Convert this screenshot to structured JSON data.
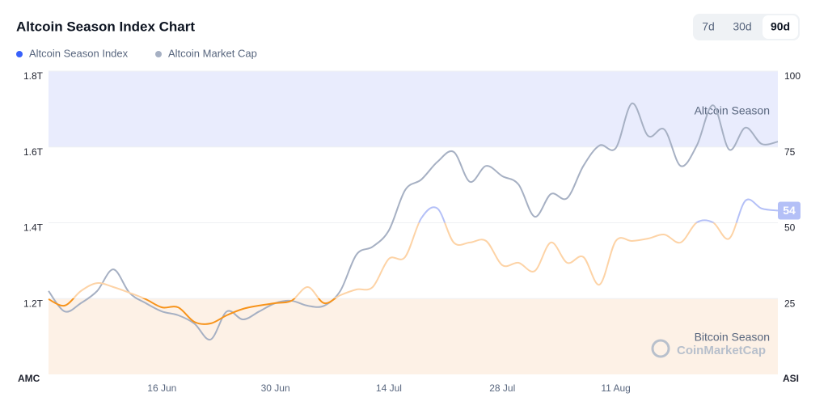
{
  "header": {
    "title": "Altcoin Season Index Chart",
    "ranges": [
      "7d",
      "30d",
      "90d"
    ],
    "active_range": 2
  },
  "chart_data": {
    "type": "line",
    "categories": [
      null,
      null,
      null,
      null,
      null,
      null,
      null,
      "16 Jun",
      null,
      null,
      null,
      null,
      null,
      null,
      "30 Jun",
      null,
      null,
      null,
      null,
      null,
      null,
      "14 Jul",
      null,
      null,
      null,
      null,
      null,
      null,
      "28 Jul",
      null,
      null,
      null,
      null,
      null,
      null,
      "11 Aug",
      null,
      null,
      null,
      null,
      null,
      null,
      null,
      null,
      null,
      null
    ],
    "series": [
      {
        "name": "Altcoin Season Index",
        "color": "#3861fb",
        "axis": "y2",
        "line_colors": [
          "#f7931a",
          "#fdd3a6",
          "#b4c0f7"
        ],
        "line_color_stops": [
          25,
          50
        ],
        "values": [
          24.8,
          22.7,
          27.5,
          30.1,
          28.8,
          26.9,
          24.8,
          22.1,
          22.1,
          17.3,
          16.8,
          19.5,
          21.6,
          22.7,
          23.5,
          24.3,
          28.8,
          23.5,
          26.1,
          28.0,
          28.8,
          38.1,
          38.7,
          51.5,
          54.7,
          43.5,
          43.5,
          44.0,
          36.0,
          36.8,
          34.1,
          43.5,
          36.8,
          38.7,
          29.6,
          44.0,
          44.0,
          44.8,
          46.1,
          43.5,
          50.1,
          50.1,
          44.8,
          57.3,
          54.7,
          54
        ]
      },
      {
        "name": "Altcoin Market Cap",
        "color": "#a6b0c3",
        "values": [
          1.22,
          1.166,
          1.188,
          1.22,
          1.277,
          1.215,
          1.188,
          1.166,
          1.156,
          1.134,
          1.092,
          1.166,
          1.145,
          1.166,
          1.188,
          1.194,
          1.181,
          1.181,
          1.22,
          1.316,
          1.337,
          1.38,
          1.486,
          1.514,
          1.561,
          1.587,
          1.508,
          1.55,
          1.523,
          1.501,
          1.416,
          1.476,
          1.465,
          1.55,
          1.604,
          1.597,
          1.715,
          1.629,
          1.646,
          1.55,
          1.604,
          1.71,
          1.593,
          1.651,
          1.608,
          1.614
        ]
      }
    ],
    "ylim": [
      1.0,
      1.8
    ],
    "yticks": [
      {
        "value": 1.2,
        "label": "1.2T"
      },
      {
        "value": 1.4,
        "label": "1.4T"
      },
      {
        "value": 1.6,
        "label": "1.6T"
      },
      {
        "value": 1.8,
        "label": "1.8T"
      }
    ],
    "y2lim": [
      0,
      100
    ],
    "y2ticks": [
      25,
      50,
      75,
      100
    ],
    "ylabel": "AMC",
    "y2label": "ASI",
    "grid": true,
    "bands": [
      {
        "label": "Altcoin Season",
        "from": 75,
        "to": 100,
        "color": "#e9ecfd"
      },
      {
        "label": "Bitcoin Season",
        "from": 0,
        "to": 25,
        "color": "#fdf1e6"
      }
    ],
    "watermark": "CoinMarketCap"
  }
}
